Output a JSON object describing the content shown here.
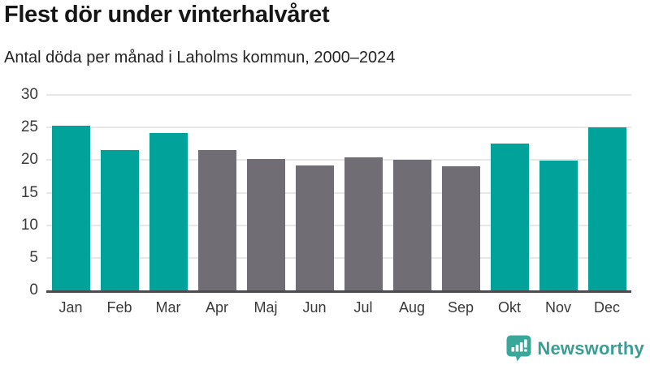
{
  "header": {
    "title": "Flest dör under vinterhalvåret",
    "subtitle": "Antal döda per månad i Laholms kommun, 2000–2024"
  },
  "branding": {
    "wordmark": "Newsworthy",
    "icon": "newsworthy-speech-bubble-bar-chart-icon"
  },
  "colors": {
    "highlight_bar": "#00a29a",
    "neutral_bar": "#706d75",
    "gridline": "#e7e7e7",
    "axis_line": "#4b4b50",
    "tick_text": "#3a3a3a",
    "title_text": "#161616",
    "subtitle_text": "#242424",
    "brand_teal": "#3a9e94"
  },
  "chart_data": {
    "type": "bar",
    "title": "Flest dör under vinterhalvåret",
    "subtitle": "Antal döda per månad i Laholms kommun, 2000–2024",
    "categories": [
      "Jan",
      "Feb",
      "Mar",
      "Apr",
      "Maj",
      "Jun",
      "Jul",
      "Aug",
      "Sep",
      "Okt",
      "Nov",
      "Dec"
    ],
    "values": [
      25.3,
      21.5,
      24.1,
      21.5,
      20.2,
      19.2,
      20.4,
      20.1,
      19.1,
      22.5,
      19.9,
      25.0
    ],
    "highlighted": [
      true,
      true,
      true,
      false,
      false,
      false,
      false,
      false,
      false,
      true,
      true,
      true
    ],
    "xlabel": "",
    "ylabel": "",
    "ylim": [
      0,
      30
    ],
    "yticks": [
      0,
      5,
      10,
      15,
      20,
      25,
      30
    ],
    "grid": "horizontal",
    "legend": "none"
  }
}
